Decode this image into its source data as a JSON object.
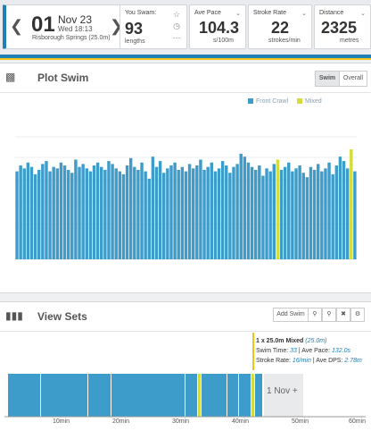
{
  "date": {
    "day": "01",
    "month": "Nov 23",
    "time": "Wed 18:13",
    "venue": "Risborough Springs (25.0m)"
  },
  "stats": {
    "swam": {
      "label": "You Swam:",
      "value": "93",
      "unit": "lengths"
    },
    "pace": {
      "label": "Ave Pace",
      "value": "104.3",
      "unit": "s/100m"
    },
    "rate": {
      "label": "Stroke Rate",
      "value": "22",
      "unit": "strokes/min"
    },
    "distance": {
      "label": "Distance",
      "value": "2325",
      "unit": "metres"
    }
  },
  "plot": {
    "title": "Plot Swim",
    "toggle": [
      "Swim",
      "Overall"
    ],
    "legend": [
      {
        "label": "Front Crawl",
        "color": "#3d9cc9"
      },
      {
        "label": "Mixed",
        "color": "#d6dc3c"
      }
    ]
  },
  "sets": {
    "title": "View Sets",
    "add_label": "Add Swim",
    "tooltip": {
      "title_a": "1 x 25.0m Mixed ",
      "title_b": "(25.0m)",
      "line1_a": "Swim Time: ",
      "line1_b": "33",
      "line1_c": " | Ave Pace: ",
      "line1_d": "132.0s",
      "line2_a": "Stroke Rate: ",
      "line2_b": "16/min",
      "line2_c": " | Ave DPS: ",
      "line2_d": "2.78m"
    },
    "nov_label": "1 Nov +",
    "axis": [
      "10min",
      "20min",
      "30min",
      "40min",
      "50min",
      "60min"
    ]
  },
  "chart_data": {
    "type": "bar",
    "series": [
      {
        "name": "Front Crawl",
        "color": "#3d9cc9"
      },
      {
        "name": "Mixed",
        "color": "#d6dc3c"
      }
    ],
    "values": [
      60,
      64,
      62,
      66,
      63,
      58,
      61,
      65,
      67,
      60,
      63,
      62,
      66,
      64,
      61,
      59,
      68,
      63,
      65,
      62,
      60,
      64,
      66,
      63,
      61,
      67,
      65,
      62,
      60,
      58,
      64,
      69,
      63,
      61,
      66,
      60,
      55,
      70,
      63,
      67,
      59,
      62,
      64,
      66,
      61,
      63,
      60,
      65,
      62,
      64,
      68,
      61,
      63,
      66,
      60,
      62,
      67,
      64,
      59,
      63,
      65,
      72,
      70,
      66,
      63,
      61,
      64,
      57,
      62,
      60,
      65,
      68,
      61,
      63,
      66,
      60,
      62,
      64,
      59,
      56,
      63,
      61,
      65,
      60,
      62,
      66,
      58,
      64,
      70,
      67,
      62,
      75,
      60
    ],
    "mixed_index": [
      71,
      91
    ]
  }
}
